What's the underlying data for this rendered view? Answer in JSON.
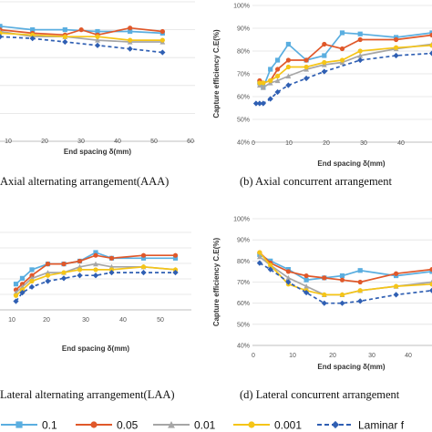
{
  "chart_data": [
    {
      "type": "line",
      "caption": "Axial alternating arrangement(AAA)",
      "xlabel": "End spacing δ(mm)",
      "ylabel": "",
      "xlim": [
        0,
        60
      ],
      "ylim": [
        0.6,
        1.0
      ],
      "xticks": [
        "10",
        "20",
        "30",
        "40",
        "50",
        "60"
      ],
      "yticks": [],
      "grid": true,
      "series": [
        {
          "key": "s0",
          "x": [
            0,
            10,
            20,
            30,
            40,
            50
          ],
          "values": [
            0.93,
            0.92,
            0.92,
            0.915,
            0.915,
            0.91
          ]
        },
        {
          "key": "s1",
          "x": [
            0,
            10,
            20,
            25,
            30,
            40,
            50
          ],
          "values": [
            0.92,
            0.91,
            0.905,
            0.92,
            0.905,
            0.925,
            0.915
          ]
        },
        {
          "key": "s2",
          "x": [
            0,
            10,
            20,
            30,
            40,
            50
          ],
          "values": [
            0.915,
            0.9,
            0.9,
            0.89,
            0.885,
            0.885
          ]
        },
        {
          "key": "s3",
          "x": [
            0,
            10,
            20,
            30,
            40,
            50
          ],
          "values": [
            0.91,
            0.905,
            0.9,
            0.9,
            0.89,
            0.89
          ]
        },
        {
          "key": "s4",
          "x": [
            0,
            10,
            20,
            30,
            40,
            50
          ],
          "values": [
            0.9,
            0.895,
            0.885,
            0.875,
            0.865,
            0.855
          ]
        }
      ]
    },
    {
      "type": "line",
      "caption": "(b) Axial concurrent arrangement",
      "xlabel": "End spacing δ(mm)",
      "ylabel": "Capture efficiency C.E(%)",
      "xlim": [
        0,
        50
      ],
      "ylim": [
        0.4,
        1.0
      ],
      "xticks": [
        "0",
        "10",
        "20",
        "30",
        "40"
      ],
      "yticks": [
        "40%",
        "50%",
        "60%",
        "70%",
        "80%",
        "90%",
        "100%"
      ],
      "grid": true,
      "series": [
        {
          "key": "s0",
          "x": [
            2,
            3,
            5,
            7,
            10,
            15,
            20,
            25,
            30,
            40,
            50
          ],
          "values": [
            0.66,
            0.64,
            0.72,
            0.76,
            0.83,
            0.76,
            0.78,
            0.88,
            0.875,
            0.86,
            0.88
          ]
        },
        {
          "key": "s1",
          "x": [
            2,
            3,
            5,
            7,
            10,
            15,
            20,
            25,
            30,
            40,
            50
          ],
          "values": [
            0.67,
            0.66,
            0.67,
            0.72,
            0.76,
            0.76,
            0.83,
            0.81,
            0.85,
            0.85,
            0.87
          ]
        },
        {
          "key": "s2",
          "x": [
            2,
            3,
            5,
            7,
            10,
            15,
            20,
            25,
            30,
            40,
            50
          ],
          "values": [
            0.65,
            0.64,
            0.66,
            0.67,
            0.69,
            0.72,
            0.74,
            0.75,
            0.78,
            0.81,
            0.83
          ]
        },
        {
          "key": "s3",
          "x": [
            2,
            3,
            5,
            7,
            10,
            15,
            20,
            25,
            30,
            40,
            50
          ],
          "values": [
            0.66,
            0.66,
            0.67,
            0.69,
            0.73,
            0.73,
            0.75,
            0.76,
            0.8,
            0.815,
            0.825
          ]
        },
        {
          "key": "s4",
          "x": [
            1,
            2,
            3,
            5,
            7,
            10,
            15,
            20,
            30,
            40,
            50
          ],
          "values": [
            0.57,
            0.57,
            0.57,
            0.59,
            0.62,
            0.65,
            0.68,
            0.71,
            0.76,
            0.78,
            0.79
          ]
        }
      ]
    },
    {
      "type": "line",
      "caption": "Lateral alternating arrangement(LAA)",
      "xlabel": "End spacing δ(mm)",
      "ylabel": "",
      "xlim": [
        -5,
        55
      ],
      "ylim": [
        0.65,
        0.92
      ],
      "xticks": [
        "10",
        "20",
        "30",
        "40",
        "50"
      ],
      "yticks": [],
      "grid": true,
      "series": [
        {
          "key": "s0",
          "x": [
            0,
            2,
            5,
            10,
            15,
            20,
            25,
            30,
            40,
            50
          ],
          "values": [
            0.74,
            0.76,
            0.79,
            0.81,
            0.81,
            0.82,
            0.85,
            0.83,
            0.83,
            0.83
          ]
        },
        {
          "key": "s1",
          "x": [
            0,
            2,
            5,
            10,
            15,
            20,
            25,
            30,
            40,
            50
          ],
          "values": [
            0.72,
            0.74,
            0.77,
            0.81,
            0.81,
            0.82,
            0.84,
            0.83,
            0.84,
            0.84
          ]
        },
        {
          "key": "s2",
          "x": [
            0,
            2,
            5,
            10,
            15,
            20,
            25,
            30,
            40,
            50
          ],
          "values": [
            0.71,
            0.73,
            0.76,
            0.78,
            0.78,
            0.8,
            0.81,
            0.8,
            0.8,
            0.79
          ]
        },
        {
          "key": "s3",
          "x": [
            0,
            2,
            5,
            10,
            15,
            20,
            25,
            30,
            40,
            50
          ],
          "values": [
            0.7,
            0.72,
            0.75,
            0.77,
            0.78,
            0.79,
            0.79,
            0.79,
            0.8,
            0.79
          ]
        },
        {
          "key": "s4",
          "x": [
            0,
            2,
            5,
            10,
            15,
            20,
            25,
            30,
            40,
            50
          ],
          "values": [
            0.68,
            0.71,
            0.73,
            0.75,
            0.76,
            0.77,
            0.77,
            0.78,
            0.78,
            0.78
          ]
        }
      ]
    },
    {
      "type": "line",
      "caption": "(d) Lateral concurrent arrangement",
      "xlabel": "End spacing δ(mm)",
      "ylabel": "Capture efficiency C.E(%)",
      "xlim": [
        0,
        50
      ],
      "ylim": [
        0.4,
        1.0
      ],
      "xticks": [
        "0",
        "10",
        "20",
        "30",
        "40"
      ],
      "yticks": [
        "40%",
        "50%",
        "60%",
        "70%",
        "80%",
        "90%",
        "100%"
      ],
      "grid": true,
      "series": [
        {
          "key": "s0",
          "x": [
            2,
            5,
            10,
            15,
            20,
            25,
            30,
            40,
            50
          ],
          "values": [
            0.83,
            0.8,
            0.76,
            0.71,
            0.72,
            0.73,
            0.755,
            0.73,
            0.75
          ]
        },
        {
          "key": "s1",
          "x": [
            2,
            5,
            10,
            15,
            20,
            25,
            30,
            40,
            50
          ],
          "values": [
            0.84,
            0.79,
            0.75,
            0.73,
            0.72,
            0.71,
            0.7,
            0.74,
            0.76
          ]
        },
        {
          "key": "s2",
          "x": [
            2,
            5,
            10,
            15,
            20,
            25,
            30,
            40,
            50
          ],
          "values": [
            0.82,
            0.78,
            0.72,
            0.68,
            0.64,
            0.64,
            0.66,
            0.68,
            0.7
          ]
        },
        {
          "key": "s3",
          "x": [
            2,
            5,
            10,
            15,
            20,
            25,
            30,
            40,
            50
          ],
          "values": [
            0.84,
            0.78,
            0.69,
            0.66,
            0.64,
            0.64,
            0.66,
            0.68,
            0.69
          ]
        },
        {
          "key": "s4",
          "x": [
            2,
            5,
            10,
            15,
            20,
            25,
            30,
            40,
            50
          ],
          "values": [
            0.79,
            0.76,
            0.7,
            0.65,
            0.6,
            0.6,
            0.61,
            0.64,
            0.66
          ]
        }
      ]
    }
  ],
  "legend": [
    {
      "key": "s0",
      "label": "0.1"
    },
    {
      "key": "s1",
      "label": "0.05"
    },
    {
      "key": "s2",
      "label": "0.01"
    },
    {
      "key": "s3",
      "label": "0.001"
    },
    {
      "key": "s4",
      "label": "Laminar f"
    }
  ],
  "series_styles": {
    "s0": {
      "color": "#5aaee0",
      "marker": "square",
      "dash": false
    },
    "s1": {
      "color": "#e0582a",
      "marker": "circle",
      "dash": false
    },
    "s2": {
      "color": "#a6a6a6",
      "marker": "triangle",
      "dash": false
    },
    "s3": {
      "color": "#f5c518",
      "marker": "circle",
      "dash": false
    },
    "s4": {
      "color": "#2f5fb3",
      "marker": "diamond",
      "dash": true
    }
  }
}
